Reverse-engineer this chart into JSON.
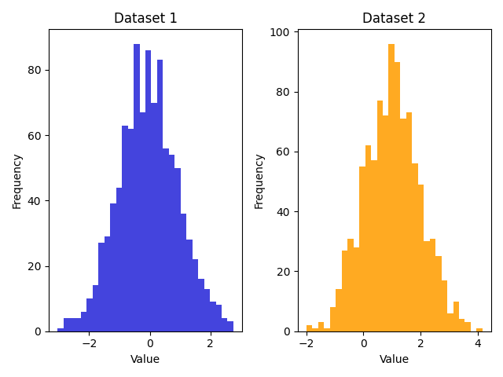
{
  "title1": "Dataset 1",
  "title2": "Dataset 2",
  "xlabel": "Value",
  "ylabel": "Frequency",
  "color1": "#4444dd",
  "color2": "#ffaa22",
  "bins": 30,
  "seed": 0,
  "mean1": 0,
  "std1": 1,
  "mean2": 1,
  "std2": 1,
  "n_samples": 1000,
  "edgecolor": "none",
  "figsize": [
    6.4,
    4.8
  ],
  "dpi": 100
}
